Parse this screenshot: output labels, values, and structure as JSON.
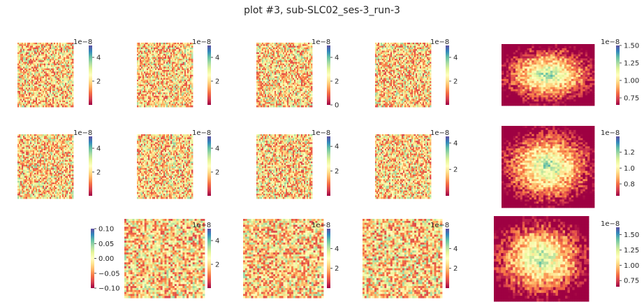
{
  "title": "plot #3, sub-SLC02_ses-3_run-3",
  "colormap": {
    "name": "Spectral",
    "stops": [
      "#9e0142",
      "#d53e4f",
      "#f46d43",
      "#fdae61",
      "#fee08b",
      "#ffffbf",
      "#e6f598",
      "#abdda4",
      "#66c2a5",
      "#3288bd",
      "#5e4fa2"
    ]
  },
  "chart_data": [
    {
      "type": "heatmap",
      "rows": 40,
      "cols": 40,
      "pattern": "noise",
      "colorbar": {
        "min": 0,
        "max": 5,
        "ticks": [
          "2",
          "4"
        ],
        "exponent": "1e−8"
      }
    },
    {
      "type": "heatmap",
      "rows": 40,
      "cols": 40,
      "pattern": "noise",
      "colorbar": {
        "min": 0,
        "max": 5,
        "ticks": [
          "2",
          "4"
        ],
        "exponent": "1e−8"
      }
    },
    {
      "type": "heatmap",
      "rows": 40,
      "cols": 40,
      "pattern": "noise",
      "colorbar": {
        "min": 0,
        "max": 5,
        "ticks": [
          "0",
          "2",
          "4"
        ],
        "exponent": "1e−8"
      }
    },
    {
      "type": "heatmap",
      "rows": 40,
      "cols": 40,
      "pattern": "noise",
      "colorbar": {
        "min": 0,
        "max": 5,
        "ticks": [
          "2",
          "4"
        ],
        "exponent": "1e−8"
      }
    },
    {
      "type": "heatmap",
      "rows": 30,
      "cols": 40,
      "pattern": "center",
      "colorbar": {
        "min": 0.65,
        "max": 1.5,
        "ticks": [
          "0.75",
          "1.00",
          "1.25",
          "1.50"
        ],
        "exponent": "1e−8"
      }
    },
    {
      "type": "heatmap",
      "rows": 40,
      "cols": 40,
      "pattern": "noise",
      "colorbar": {
        "min": 0,
        "max": 5,
        "ticks": [
          "2",
          "4"
        ],
        "exponent": "1e−8"
      }
    },
    {
      "type": "heatmap",
      "rows": 40,
      "cols": 40,
      "pattern": "noise",
      "colorbar": {
        "min": 0,
        "max": 5,
        "ticks": [
          "2",
          "4"
        ],
        "exponent": "1e−8"
      }
    },
    {
      "type": "heatmap",
      "rows": 40,
      "cols": 40,
      "pattern": "noise",
      "colorbar": {
        "min": 0,
        "max": 4.8,
        "ticks": [
          "2",
          "4"
        ],
        "exponent": "1e−8"
      }
    },
    {
      "type": "heatmap",
      "rows": 40,
      "cols": 40,
      "pattern": "noise",
      "colorbar": {
        "min": 0,
        "max": 4.5,
        "ticks": [
          "2",
          "4"
        ],
        "exponent": "1e−8"
      }
    },
    {
      "type": "heatmap",
      "rows": 40,
      "cols": 40,
      "pattern": "center",
      "colorbar": {
        "min": 0.65,
        "max": 1.4,
        "ticks": [
          "0.8",
          "1.0",
          "1.2"
        ],
        "exponent": "1e−8"
      }
    },
    {
      "type": "colorbar-only",
      "colorbar": {
        "min": -0.1,
        "max": 0.1,
        "ticks": [
          "−0.10",
          "−0.05",
          "0.00",
          "0.05",
          "0.10"
        ],
        "exponent": ""
      }
    },
    {
      "type": "heatmap",
      "rows": 40,
      "cols": 40,
      "pattern": "noise",
      "colorbar": {
        "min": 0,
        "max": 5,
        "ticks": [
          "2",
          "4"
        ],
        "exponent": "1e−8"
      }
    },
    {
      "type": "heatmap",
      "rows": 40,
      "cols": 40,
      "pattern": "noise",
      "colorbar": {
        "min": 0,
        "max": 6,
        "ticks": [
          "2",
          "4"
        ],
        "exponent": "1e−8"
      }
    },
    {
      "type": "heatmap",
      "rows": 40,
      "cols": 40,
      "pattern": "noise",
      "colorbar": {
        "min": 0,
        "max": 6,
        "ticks": [
          "2",
          "4"
        ],
        "exponent": "1e−8"
      }
    },
    {
      "type": "heatmap",
      "rows": 30,
      "cols": 40,
      "pattern": "center",
      "colorbar": {
        "min": 0.65,
        "max": 1.62,
        "ticks": [
          "0.75",
          "1.00",
          "1.25",
          "1.50"
        ],
        "exponent": "1e−8"
      }
    }
  ]
}
